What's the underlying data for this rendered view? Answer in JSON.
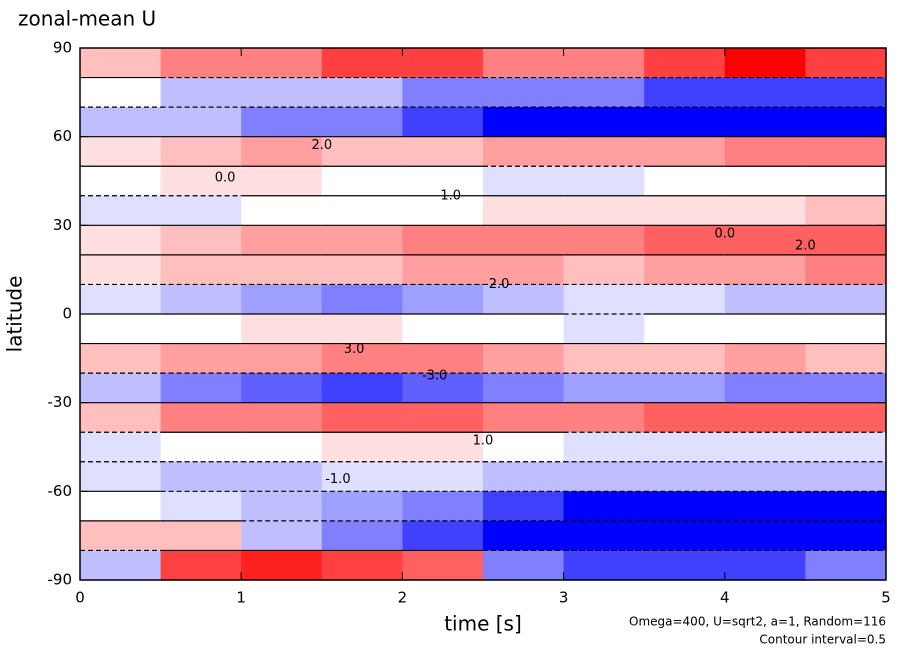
{
  "chart_data": {
    "type": "contour",
    "title": "zonal-mean U",
    "x_label": "time [s]",
    "y_label": "latitude",
    "footnotes": [
      "Omega=400, U=sqrt2, a=1, Random=116",
      "Contour interval=0.5"
    ],
    "x": [
      0.25,
      0.75,
      1.25,
      1.75,
      2.25,
      2.75,
      3.25,
      3.75,
      4.25,
      4.75
    ],
    "y": [
      85,
      75,
      65,
      55,
      45,
      35,
      25,
      15,
      5,
      -5,
      -15,
      -25,
      -35,
      -45,
      -55,
      -65,
      -75,
      -85
    ],
    "z": [
      [
        1,
        2,
        2,
        3,
        3,
        2,
        2,
        3,
        4,
        3
      ],
      [
        0,
        -1,
        -1,
        -1,
        -2,
        -2,
        -2,
        -3,
        -3,
        -3
      ],
      [
        -1,
        -1,
        -2,
        -2,
        -3,
        -4,
        -5,
        -5,
        -5,
        -5
      ],
      [
        0.5,
        1,
        1.5,
        1,
        1,
        1.5,
        1.5,
        1.5,
        2,
        2
      ],
      [
        0,
        0.5,
        0.5,
        0,
        0,
        -0.5,
        -0.5,
        0,
        0,
        0
      ],
      [
        -0.5,
        -0.5,
        0,
        0,
        0,
        0.5,
        0.5,
        0.5,
        0.5,
        1
      ],
      [
        0.5,
        1,
        1.5,
        1.5,
        2,
        2,
        2,
        2.5,
        2.5,
        2.5
      ],
      [
        0.5,
        1,
        1,
        1,
        1.5,
        1.5,
        1,
        1.5,
        1.5,
        2
      ],
      [
        -0.5,
        -1,
        -1.5,
        -2,
        -1.5,
        -1,
        -0.5,
        -0.5,
        -1,
        -1
      ],
      [
        0,
        0,
        0.5,
        0.5,
        0,
        0,
        -0.5,
        0,
        0,
        0
      ],
      [
        1,
        1.5,
        1.5,
        2,
        2,
        1.5,
        1,
        1,
        1.5,
        1
      ],
      [
        -1,
        -2,
        -2.5,
        -3,
        -2.5,
        -2,
        -1.5,
        -1.5,
        -2,
        -2
      ],
      [
        1,
        2,
        2,
        2.5,
        2.5,
        2,
        2,
        2.5,
        2.5,
        2.5
      ],
      [
        -0.5,
        0,
        0,
        0.5,
        0.5,
        0,
        -0.5,
        -0.5,
        -0.5,
        -0.5
      ],
      [
        -0.5,
        -1,
        -1,
        -0.5,
        -0.5,
        -1,
        -1,
        -1,
        -1,
        -1
      ],
      [
        0,
        -0.5,
        -1,
        -1.5,
        -2,
        -3,
        -4,
        -4,
        -4,
        -4
      ],
      [
        1,
        1,
        -1,
        -2,
        -3,
        -5,
        -5,
        -5,
        -5,
        -5
      ],
      [
        -1,
        3,
        3.5,
        3,
        2.5,
        -2,
        -3,
        -3,
        -3,
        -2
      ]
    ],
    "colors": {
      "negative": "#0000ff",
      "zero": "#ffffff",
      "positive": "#ff0000"
    },
    "clim": [
      -4,
      4
    ],
    "contour_labels": [
      {
        "text": "0.0",
        "x": 0.9,
        "y": 46
      },
      {
        "text": "1.0",
        "x": 2.3,
        "y": 40
      },
      {
        "text": "2.0",
        "x": 1.5,
        "y": 57
      },
      {
        "text": "0.0",
        "x": 4.0,
        "y": 27
      },
      {
        "text": "2.0",
        "x": 4.5,
        "y": 23
      },
      {
        "text": "3.0",
        "x": 1.7,
        "y": -12
      },
      {
        "text": "-3.0",
        "x": 2.2,
        "y": -21
      },
      {
        "text": "1.0",
        "x": 2.5,
        "y": -43
      },
      {
        "text": "-1.0",
        "x": 1.6,
        "y": -56
      },
      {
        "text": "2.0",
        "x": 2.6,
        "y": 10
      }
    ],
    "xlim": [
      0,
      5
    ],
    "ylim": [
      -90,
      90
    ],
    "xticks": [
      0,
      1,
      2,
      3,
      4,
      5
    ],
    "yticks": [
      -90,
      -60,
      -30,
      0,
      30,
      60,
      90
    ]
  }
}
